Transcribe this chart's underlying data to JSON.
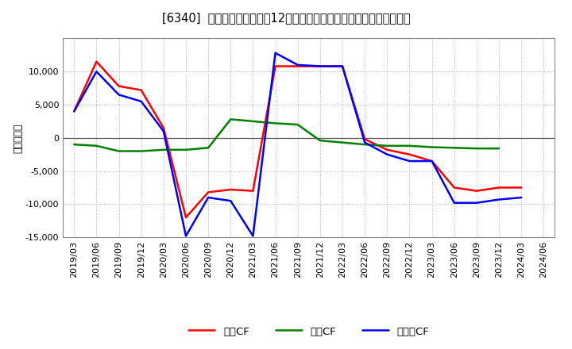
{
  "title": "[6340]  キャッシュフローの12か月移動合計の対前年同期増減額の推移",
  "ylabel": "（百万円）",
  "background_color": "#ffffff",
  "plot_bg_color": "#ffffff",
  "grid_color": "#b0b0b0",
  "x_labels": [
    "2019/03",
    "2019/06",
    "2019/09",
    "2019/12",
    "2020/03",
    "2020/06",
    "2020/09",
    "2020/12",
    "2021/03",
    "2021/06",
    "2021/09",
    "2021/12",
    "2022/03",
    "2022/06",
    "2022/09",
    "2022/12",
    "2023/03",
    "2023/06",
    "2023/09",
    "2023/12",
    "2024/03",
    "2024/06"
  ],
  "operating_cf": [
    4000,
    11500,
    7800,
    7200,
    1500,
    -12000,
    -8200,
    -7800,
    -8000,
    10800,
    10800,
    10800,
    10800,
    -200,
    -1800,
    -2500,
    -3500,
    -7500,
    -8000,
    -7500,
    -7500,
    null
  ],
  "investing_cf": [
    -1000,
    -1200,
    -2000,
    -2000,
    -1800,
    -1800,
    -1500,
    2800,
    2500,
    2200,
    2000,
    -400,
    -700,
    -1000,
    -1200,
    -1200,
    -1400,
    -1500,
    -1600,
    -1600,
    null,
    null
  ],
  "free_cf": [
    4000,
    10000,
    6500,
    5500,
    1000,
    -14800,
    -9000,
    -9500,
    -14800,
    12800,
    11000,
    10800,
    10800,
    -700,
    -2500,
    -3500,
    -3500,
    -9800,
    -9800,
    -9300,
    -9000,
    null
  ],
  "ylim": [
    -15000,
    15000
  ],
  "yticks": [
    -15000,
    -10000,
    -5000,
    0,
    5000,
    10000
  ],
  "line_colors": {
    "operating": "#ff0000",
    "investing": "#008000",
    "free": "#0000ff"
  },
  "line_width": 1.8,
  "legend_labels": [
    "営業CF",
    "投資CF",
    "フリーCF"
  ]
}
